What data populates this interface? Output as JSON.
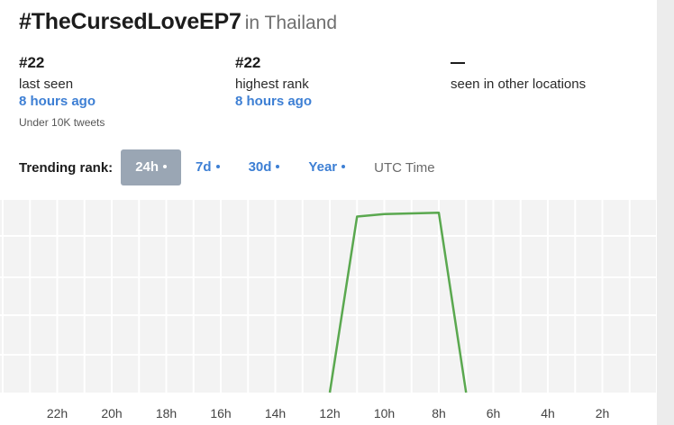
{
  "title": {
    "hashtag": "#TheCursedLoveEP7",
    "location": "in Thailand"
  },
  "stats": {
    "last_seen": {
      "rank": "#22",
      "label": "last seen",
      "time": "8 hours ago",
      "note": "Under 10K tweets"
    },
    "highest": {
      "rank": "#22",
      "label": "highest rank",
      "time": "8 hours ago"
    },
    "other": {
      "label": "seen in other locations"
    }
  },
  "ranks": {
    "label": "Trending rank:",
    "tabs": [
      {
        "label": "24h",
        "active": true
      },
      {
        "label": "7d",
        "active": false
      },
      {
        "label": "30d",
        "active": false
      },
      {
        "label": "Year",
        "active": false
      }
    ],
    "utc_label": "UTC Time"
  },
  "colors": {
    "accent": "#3d7fd4",
    "line": "#5aa84f",
    "active_tab": "#9aa6b4"
  },
  "chart_data": {
    "type": "line",
    "x_ticks": [
      "22h",
      "20h",
      "18h",
      "16h",
      "14h",
      "12h",
      "10h",
      "8h",
      "6h",
      "4h",
      "2h"
    ],
    "x_label_unit": "hours ago",
    "series": [
      {
        "points": [
          {
            "x": 12,
            "y": 50
          },
          {
            "x": 11,
            "y": 22.6
          },
          {
            "x": 10,
            "y": 22.2
          },
          {
            "x": 8,
            "y": 22
          },
          {
            "x": 7,
            "y": 50
          }
        ]
      }
    ],
    "grid": true
  }
}
